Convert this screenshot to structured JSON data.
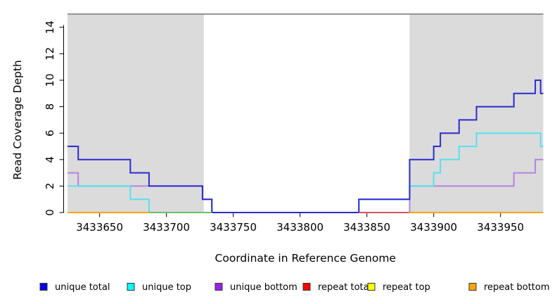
{
  "chart_data": {
    "type": "line",
    "subtype": "step-coverage",
    "title": "",
    "xlabel": "Coordinate in Reference Genome",
    "ylabel": "Read Coverage Depth",
    "xlim": [
      3433626,
      3433982
    ],
    "ylim": [
      0,
      15
    ],
    "x_ticks": [
      3433650,
      3433700,
      3433750,
      3433800,
      3433850,
      3433900,
      3433950
    ],
    "x_tick_labels": [
      "3433650",
      "3433700",
      "3433750",
      "3433800",
      "3433850",
      "3433900",
      "3433950"
    ],
    "y_ticks": [
      0,
      2,
      4,
      6,
      8,
      10,
      12,
      14
    ],
    "y_tick_labels": [
      "0",
      "2",
      "4",
      "6",
      "8",
      "10",
      "12",
      "14"
    ],
    "grid": false,
    "legend_position": "bottom",
    "plot_bg": "#ffffff",
    "repeat_region_fill": "#DBDBDB",
    "reference_line": {
      "y": 15,
      "color": "#969696"
    },
    "repeat_regions": [
      {
        "from": 3433626,
        "to": 3433728
      },
      {
        "from": 3433882,
        "to": 3433982
      }
    ],
    "series": [
      {
        "name": "unique bottom",
        "line_color": "#B583E3",
        "legend_color": "#A020F0",
        "render": "line",
        "points": [
          [
            3433626,
            3
          ],
          [
            3433634,
            3
          ],
          [
            3433634,
            2
          ],
          [
            3433727,
            2
          ],
          [
            3433727,
            1
          ],
          [
            3433734,
            1
          ],
          [
            3433734,
            0
          ],
          [
            3433882,
            0
          ],
          [
            3433882,
            2
          ],
          [
            3433960,
            2
          ],
          [
            3433960,
            3
          ],
          [
            3433976,
            3
          ],
          [
            3433976,
            4
          ],
          [
            3433982,
            4
          ]
        ]
      },
      {
        "name": "unique top",
        "line_color": "#55E2EE",
        "legend_color": "#00FFFF",
        "render": "line",
        "points": [
          [
            3433626,
            2
          ],
          [
            3433673,
            2
          ],
          [
            3433673,
            1
          ],
          [
            3433687,
            1
          ],
          [
            3433687,
            0
          ],
          [
            3433844,
            0
          ],
          [
            3433844,
            1
          ],
          [
            3433882,
            1
          ],
          [
            3433882,
            2
          ],
          [
            3433900,
            2
          ],
          [
            3433900,
            3
          ],
          [
            3433905,
            3
          ],
          [
            3433905,
            4
          ],
          [
            3433919,
            4
          ],
          [
            3433919,
            5
          ],
          [
            3433932,
            5
          ],
          [
            3433932,
            6
          ],
          [
            3433980,
            6
          ],
          [
            3433980,
            5
          ],
          [
            3433982,
            5
          ]
        ]
      },
      {
        "name": "unique total",
        "line_color": "#2B2BD0",
        "legend_color": "#0000EE",
        "render": "line",
        "points": [
          [
            3433626,
            5
          ],
          [
            3433634,
            5
          ],
          [
            3433634,
            4
          ],
          [
            3433673,
            4
          ],
          [
            3433673,
            3
          ],
          [
            3433687,
            3
          ],
          [
            3433687,
            2
          ],
          [
            3433727,
            2
          ],
          [
            3433727,
            1
          ],
          [
            3433734,
            1
          ],
          [
            3433734,
            0
          ],
          [
            3433844,
            0
          ],
          [
            3433844,
            1
          ],
          [
            3433882,
            1
          ],
          [
            3433882,
            4
          ],
          [
            3433900,
            4
          ],
          [
            3433900,
            5
          ],
          [
            3433905,
            5
          ],
          [
            3433905,
            6
          ],
          [
            3433919,
            6
          ],
          [
            3433919,
            7
          ],
          [
            3433932,
            7
          ],
          [
            3433932,
            8
          ],
          [
            3433960,
            8
          ],
          [
            3433960,
            9
          ],
          [
            3433976,
            9
          ],
          [
            3433976,
            10
          ],
          [
            3433980,
            10
          ],
          [
            3433980,
            9
          ],
          [
            3433982,
            9
          ]
        ]
      },
      {
        "name": "repeat total",
        "line_color": "#D9505C",
        "legend_color": "#FF0000",
        "render": "baseline",
        "points": [
          [
            3433626,
            0
          ],
          [
            3433982,
            0
          ]
        ]
      },
      {
        "name": "repeat top",
        "line_color": "#E8E84A",
        "legend_color": "#FFFF00",
        "render": "baseline",
        "points": [
          [
            3433626,
            0
          ],
          [
            3433982,
            0
          ]
        ]
      },
      {
        "name": "repeat bottom",
        "line_color": "#FFA500",
        "legend_color": "#FFA500",
        "render": "baseline",
        "points": [
          [
            3433626,
            0
          ],
          [
            3433982,
            0
          ]
        ]
      }
    ],
    "baseline_visible_segments": [
      {
        "color": "#FFA500",
        "from": 3433626,
        "to": 3433687
      },
      {
        "color": "#6ABE6A",
        "from": 3433687,
        "to": 3433734
      },
      {
        "color": "#D9505C",
        "from": 3433844,
        "to": 3433881
      },
      {
        "color": "#FFA500",
        "from": 3433882,
        "to": 3433982
      }
    ]
  },
  "legend": {
    "items": [
      {
        "label": "unique total",
        "color": "#0000EE"
      },
      {
        "label": "unique top",
        "color": "#00FFFF"
      },
      {
        "label": "unique bottom",
        "color": "#A020F0"
      },
      {
        "label": "repeat total",
        "color": "#FF0000"
      },
      {
        "label": "repeat top",
        "color": "#FFFF00"
      },
      {
        "label": "repeat bottom",
        "color": "#FFA500"
      }
    ]
  }
}
